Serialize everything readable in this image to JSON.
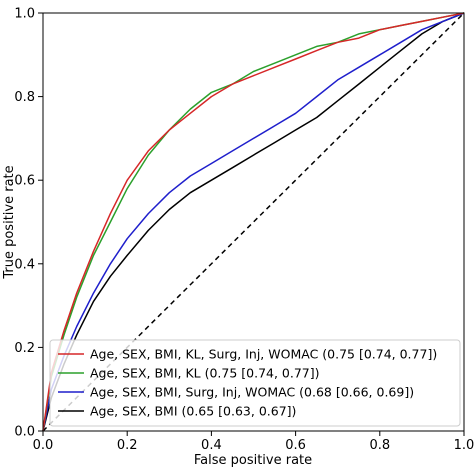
{
  "chart_data": {
    "type": "line",
    "xlabel": "False positive rate",
    "ylabel": "True positive rate",
    "xlim": [
      0,
      1
    ],
    "ylim": [
      0,
      1
    ],
    "x_ticks": [
      "0.0",
      "0.2",
      "0.4",
      "0.6",
      "0.8",
      "1.0"
    ],
    "y_ticks": [
      "0.0",
      "0.2",
      "0.4",
      "0.6",
      "0.8",
      "1.0"
    ],
    "grid": false,
    "legend_position": "lower-right",
    "series": [
      {
        "name": "Age, SEX, BMI, KL, Surg, Inj, WOMAC (0.75 [0.74, 0.77])",
        "color": "#d62728",
        "x": [
          0,
          0.02,
          0.05,
          0.08,
          0.12,
          0.16,
          0.2,
          0.25,
          0.3,
          0.35,
          0.4,
          0.45,
          0.5,
          0.55,
          0.6,
          0.65,
          0.7,
          0.75,
          0.8,
          0.85,
          0.9,
          0.95,
          1.0
        ],
        "y": [
          0,
          0.14,
          0.24,
          0.33,
          0.43,
          0.52,
          0.6,
          0.67,
          0.72,
          0.76,
          0.8,
          0.83,
          0.85,
          0.87,
          0.89,
          0.91,
          0.93,
          0.94,
          0.96,
          0.97,
          0.98,
          0.99,
          1.0
        ]
      },
      {
        "name": "Age, SEX, BMI, KL (0.75 [0.74, 0.77])",
        "color": "#2ca02c",
        "x": [
          0,
          0.02,
          0.05,
          0.08,
          0.12,
          0.16,
          0.2,
          0.25,
          0.3,
          0.35,
          0.4,
          0.45,
          0.5,
          0.55,
          0.6,
          0.65,
          0.7,
          0.75,
          0.8,
          0.85,
          0.9,
          0.95,
          1.0
        ],
        "y": [
          0,
          0.13,
          0.23,
          0.32,
          0.42,
          0.5,
          0.58,
          0.66,
          0.72,
          0.77,
          0.81,
          0.83,
          0.86,
          0.88,
          0.9,
          0.92,
          0.93,
          0.95,
          0.96,
          0.97,
          0.98,
          0.99,
          1.0
        ]
      },
      {
        "name": "Age, SEX, BMI, Surg, Inj, WOMAC (0.68 [0.66, 0.69])",
        "color": "#1f1fcc",
        "x": [
          0,
          0.02,
          0.05,
          0.08,
          0.12,
          0.16,
          0.2,
          0.25,
          0.3,
          0.35,
          0.4,
          0.45,
          0.5,
          0.55,
          0.6,
          0.65,
          0.7,
          0.75,
          0.8,
          0.85,
          0.9,
          0.95,
          1.0
        ],
        "y": [
          0,
          0.1,
          0.18,
          0.25,
          0.33,
          0.4,
          0.46,
          0.52,
          0.57,
          0.61,
          0.64,
          0.67,
          0.7,
          0.73,
          0.76,
          0.8,
          0.84,
          0.87,
          0.9,
          0.93,
          0.96,
          0.98,
          1.0
        ]
      },
      {
        "name": "Age, SEX, BMI (0.65 [0.63, 0.67])",
        "color": "#000000",
        "x": [
          0,
          0.02,
          0.05,
          0.08,
          0.12,
          0.16,
          0.2,
          0.25,
          0.3,
          0.35,
          0.4,
          0.45,
          0.5,
          0.55,
          0.6,
          0.65,
          0.7,
          0.75,
          0.8,
          0.85,
          0.9,
          0.95,
          1.0
        ],
        "y": [
          0,
          0.08,
          0.16,
          0.23,
          0.31,
          0.37,
          0.42,
          0.48,
          0.53,
          0.57,
          0.6,
          0.63,
          0.66,
          0.69,
          0.72,
          0.75,
          0.79,
          0.83,
          0.87,
          0.91,
          0.95,
          0.98,
          1.0
        ]
      }
    ],
    "reference_line": {
      "style": "dashed",
      "color": "#000000",
      "x": [
        0,
        1
      ],
      "y": [
        0,
        1
      ]
    }
  }
}
